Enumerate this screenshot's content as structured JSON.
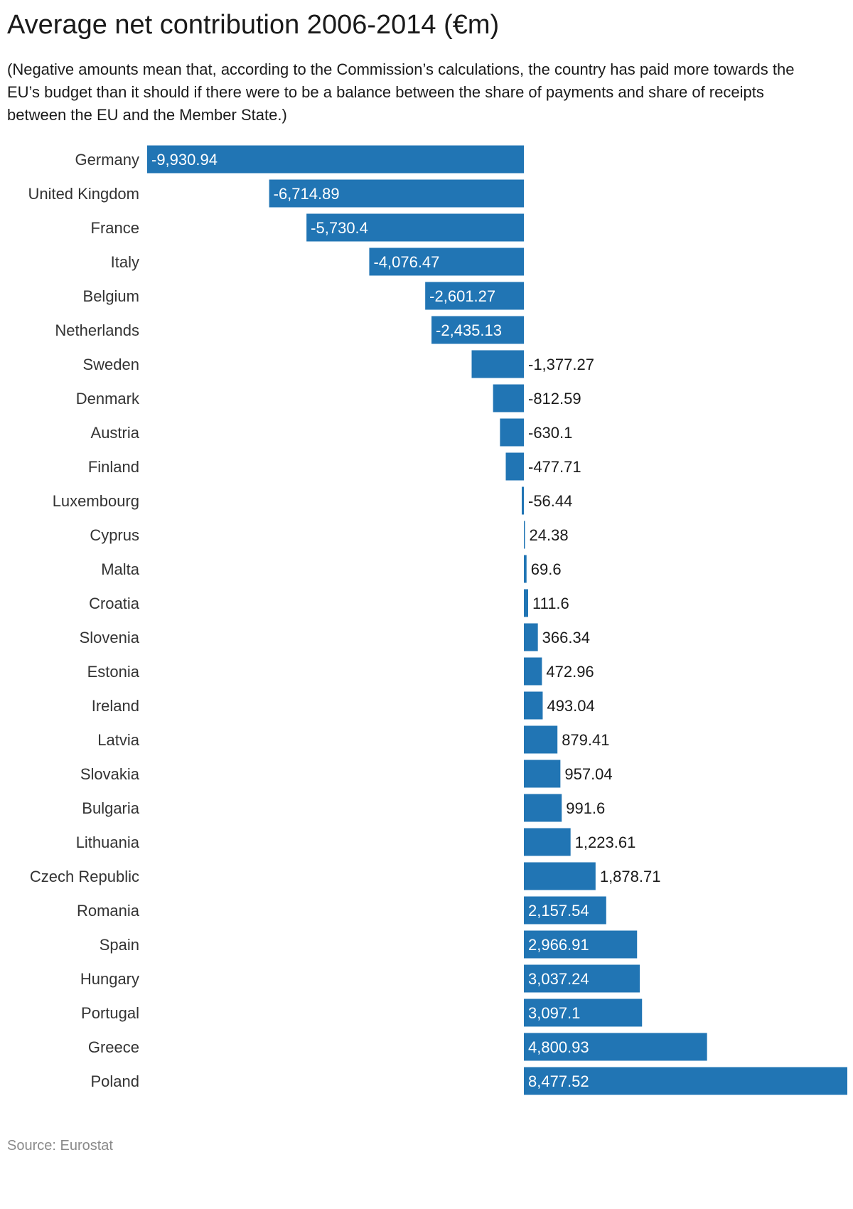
{
  "title": "Average net contribution 2006-2014 (€m)",
  "subtitle": "(Negative amounts mean that, according to the Commission’s calculations, the country has paid more towards the EU’s budget than it should if there were to be a balance between the share of payments and share of receipts between the EU and the Member State.)",
  "source": "Source: Eurostat",
  "colors": {
    "bar": "#2175b4",
    "label_inside": "#ffffff",
    "label_outside": "#1a1a1a",
    "category": "#333333"
  },
  "chart_data": {
    "type": "bar",
    "orientation": "horizontal",
    "title": "Average net contribution 2006-2014 (€m)",
    "xlabel": "",
    "ylabel": "",
    "xlim": [
      -9930.94,
      8477.52
    ],
    "categories": [
      "Germany",
      "United Kingdom",
      "France",
      "Italy",
      "Belgium",
      "Netherlands",
      "Sweden",
      "Denmark",
      "Austria",
      "Finland",
      "Luxembourg",
      "Cyprus",
      "Malta",
      "Croatia",
      "Slovenia",
      "Estonia",
      "Ireland",
      "Latvia",
      "Slovakia",
      "Bulgaria",
      "Lithuania",
      "Czech Republic",
      "Romania",
      "Spain",
      "Hungary",
      "Portugal",
      "Greece",
      "Poland"
    ],
    "values": [
      -9930.94,
      -6714.89,
      -5730.4,
      -4076.47,
      -2601.27,
      -2435.13,
      -1377.27,
      -812.59,
      -630.1,
      -477.71,
      -56.44,
      24.38,
      69.6,
      111.6,
      366.34,
      472.96,
      493.04,
      879.41,
      957.04,
      991.6,
      1223.61,
      1878.71,
      2157.54,
      2966.91,
      3037.24,
      3097.1,
      4800.93,
      8477.52
    ],
    "labels": [
      "-9,930.94",
      "-6,714.89",
      "-5,730.4",
      "-4,076.47",
      "-2,601.27",
      "-2,435.13",
      "-1,377.27",
      "-812.59",
      "-630.1",
      "-477.71",
      "-56.44",
      "24.38",
      "69.6",
      "111.6",
      "366.34",
      "472.96",
      "493.04",
      "879.41",
      "957.04",
      "991.6",
      "1,223.61",
      "1,878.71",
      "2,157.54",
      "2,966.91",
      "3,037.24",
      "3,097.1",
      "4,800.93",
      "8,477.52"
    ]
  }
}
